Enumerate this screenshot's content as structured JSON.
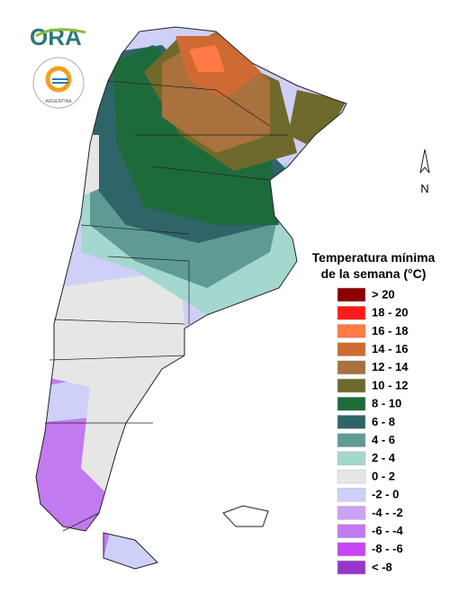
{
  "logo": {
    "text": "ORA",
    "seal_text": "ARGENTINA"
  },
  "compass": "N",
  "legend": {
    "title": [
      "Temperatura mínima",
      "de la semana (°C)"
    ],
    "items": [
      {
        "label": "> 20",
        "color": "#8b0000"
      },
      {
        "label": "18 - 20",
        "color": "#ff1a1a"
      },
      {
        "label": "16 - 18",
        "color": "#ff7a45"
      },
      {
        "label": "14 - 16",
        "color": "#cf6b32"
      },
      {
        "label": "12 - 14",
        "color": "#a8713d"
      },
      {
        "label": "10 - 12",
        "color": "#6e6a2c"
      },
      {
        "label": "8 - 10",
        "color": "#1d6b3b"
      },
      {
        "label": "6 - 8",
        "color": "#2f6468"
      },
      {
        "label": "4 - 6",
        "color": "#5f9a95"
      },
      {
        "label": "2 - 4",
        "color": "#a4d8cf"
      },
      {
        "label": "0 - 2",
        "color": "#e6e6e6"
      },
      {
        "label": "-2 - 0",
        "color": "#cfd0f8"
      },
      {
        "label": "-4 - -2",
        "color": "#cca2f2"
      },
      {
        "label": "-6 - -4",
        "color": "#c27af0"
      },
      {
        "label": "-8 - -6",
        "color": "#c844f2"
      },
      {
        "label": "< -8",
        "color": "#9636c8"
      }
    ]
  }
}
